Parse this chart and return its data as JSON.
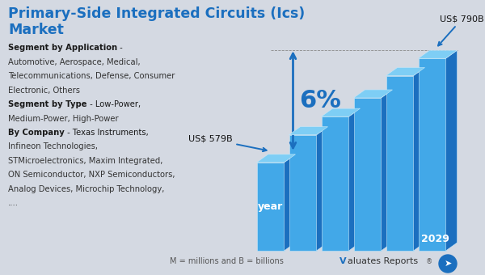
{
  "title_line1": "Primary-Side Integrated Circuits (Ics)",
  "title_line2": "Market",
  "title_color": "#1b6fbf",
  "title_fontsize": 12.5,
  "background_color": "#d4d9e2",
  "bar_values": [
    579,
    635,
    672,
    710,
    755,
    790
  ],
  "bar_color_face": "#42a8e8",
  "bar_color_side": "#1b6fbf",
  "bar_color_top": "#7ecef5",
  "start_label": "US$ 579B",
  "end_label": "US$ 790B",
  "growth_label": "6%",
  "year_label": "year",
  "end_year_label": "2029",
  "bottom_text": "M = millions and B = billions",
  "left_text_lines": [
    {
      "bold": true,
      "normal": " -",
      "text": "Segment by Application"
    },
    {
      "bold": false,
      "normal": "",
      "text": "Automotive, Aerospace, Medical,"
    },
    {
      "bold": false,
      "normal": "",
      "text": "Telecommunications, Defense, Consumer"
    },
    {
      "bold": false,
      "normal": "",
      "text": "Electronic, Others"
    },
    {
      "bold": true,
      "normal": " - Low-Power,",
      "text": "Segment by Type"
    },
    {
      "bold": false,
      "normal": "",
      "text": "Medium-Power, High-Power"
    },
    {
      "bold": true,
      "normal": " - Texas Instruments,",
      "text": "By Company"
    },
    {
      "bold": false,
      "normal": "",
      "text": "Infineon Technologies,"
    },
    {
      "bold": false,
      "normal": "",
      "text": "STMicroelectronics, Maxim Integrated,"
    },
    {
      "bold": false,
      "normal": "",
      "text": "ON Semiconductor, NXP Semiconductors,"
    },
    {
      "bold": false,
      "normal": "",
      "text": "Analog Devices, Microchip Technology,"
    },
    {
      "bold": false,
      "normal": "",
      "text": "...."
    }
  ]
}
